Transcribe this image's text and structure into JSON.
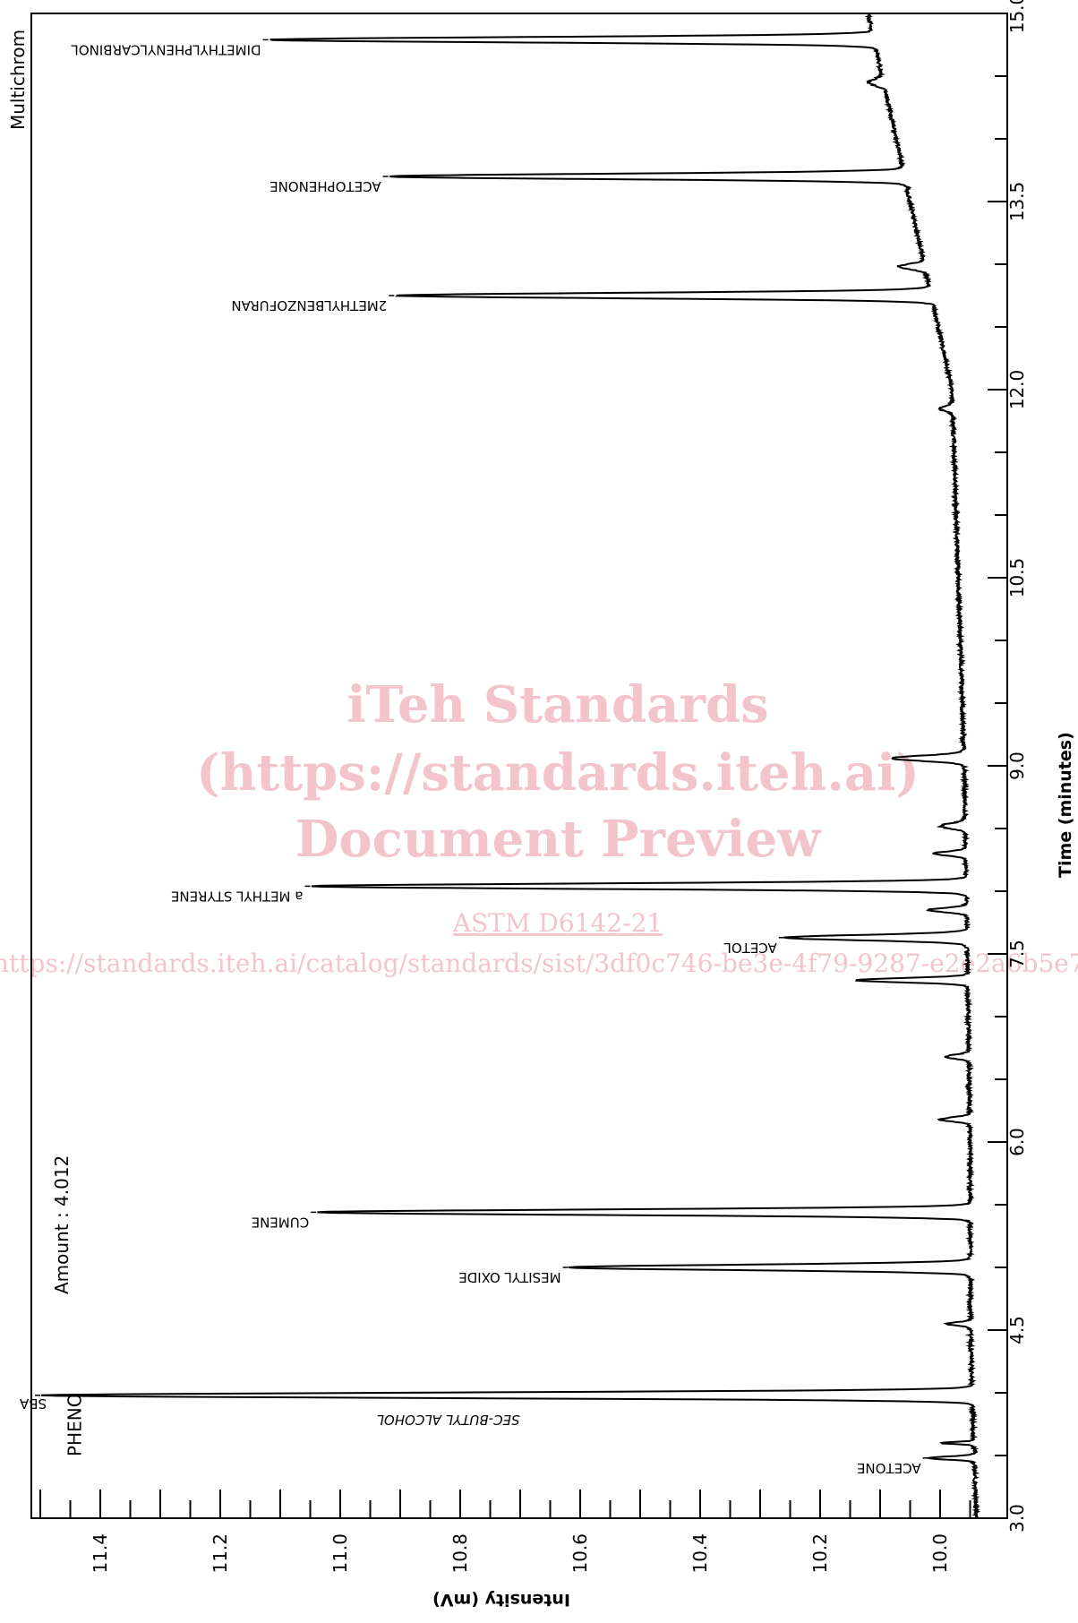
{
  "chart_data": {
    "type": "line",
    "orientation": "time axis vertical on right, intensity axis horizontal on bottom (rotated chromatogram)",
    "title": "Multichrom",
    "amount_text": "Amount : 4.012",
    "xlabel": "Time (minutes)",
    "ylabel": "Intensity (mV)",
    "xlim": [
      3.0,
      15.0
    ],
    "ylim": [
      9.92,
      11.5
    ],
    "time_ticks": [
      "3.0",
      "4.5",
      "6.0",
      "7.5",
      "9.0",
      "10.5",
      "12.0",
      "13.5",
      "15.0"
    ],
    "time_tick_values": [
      3.0,
      4.5,
      6.0,
      7.5,
      9.0,
      10.5,
      12.0,
      13.5,
      15.0
    ],
    "intensity_ticks": [
      "10.0",
      "10.2",
      "10.4",
      "10.6",
      "10.8",
      "11.0",
      "11.2",
      "11.4"
    ],
    "intensity_tick_values": [
      10.0,
      10.2,
      10.4,
      10.6,
      10.8,
      11.0,
      11.2,
      11.4
    ],
    "baseline": [
      {
        "t": 3.0,
        "i": 9.94
      },
      {
        "t": 4.5,
        "i": 9.95
      },
      {
        "t": 6.0,
        "i": 9.95
      },
      {
        "t": 9.0,
        "i": 9.96
      },
      {
        "t": 12.0,
        "i": 9.98
      },
      {
        "t": 13.5,
        "i": 10.05
      },
      {
        "t": 15.0,
        "i": 10.12
      }
    ],
    "series": [
      {
        "peaks": [
          {
            "label": "ACETONE",
            "t": 3.48,
            "height": 10.02,
            "width": 0.03
          },
          {
            "label": "",
            "t": 3.6,
            "height": 10.0,
            "width": 0.02
          },
          {
            "label": "SBA",
            "t": 3.98,
            "height": 11.5,
            "width": 0.05
          },
          {
            "label": "",
            "t": 4.55,
            "height": 9.99,
            "width": 0.03
          },
          {
            "label": "MESITYL OXIDE",
            "t": 5.0,
            "height": 10.62,
            "width": 0.05
          },
          {
            "label": "CUMENE",
            "t": 5.44,
            "height": 11.04,
            "width": 0.05
          },
          {
            "label": "",
            "t": 6.18,
            "height": 10.0,
            "width": 0.04
          },
          {
            "label": "",
            "t": 6.68,
            "height": 9.99,
            "width": 0.04
          },
          {
            "label": "",
            "t": 7.29,
            "height": 10.14,
            "width": 0.04
          },
          {
            "label": "ACETOL",
            "t": 7.63,
            "height": 10.26,
            "width": 0.05
          },
          {
            "label": "",
            "t": 7.85,
            "height": 10.02,
            "width": 0.04
          },
          {
            "label": "a METHYL STYRENE",
            "t": 8.04,
            "height": 11.05,
            "width": 0.05
          },
          {
            "label": "",
            "t": 8.3,
            "height": 10.01,
            "width": 0.04
          },
          {
            "label": "",
            "t": 8.52,
            "height": 10.0,
            "width": 0.05
          },
          {
            "label": "",
            "t": 9.06,
            "height": 10.08,
            "width": 0.05
          },
          {
            "label": "",
            "t": 11.85,
            "height": 10.0,
            "width": 0.05
          },
          {
            "label": "2METHYLBENZOFURAN",
            "t": 12.75,
            "height": 10.91,
            "width": 0.05
          },
          {
            "label": "",
            "t": 12.98,
            "height": 10.07,
            "width": 0.05
          },
          {
            "label": "ACETOPHENONE",
            "t": 13.7,
            "height": 10.92,
            "width": 0.05
          },
          {
            "label": "",
            "t": 14.45,
            "height": 10.12,
            "width": 0.06
          },
          {
            "label": "DIMETHYLPHENYLCARBINOL",
            "t": 14.79,
            "height": 11.12,
            "width": 0.05
          }
        ]
      }
    ],
    "annotations": [
      {
        "text": "SEC-BUTYL ALCOHOL",
        "t": 3.82,
        "i": 10.82
      },
      {
        "text": "PHENO",
        "t": 3.6,
        "i": 11.45
      }
    ],
    "grid": false,
    "legend": "none",
    "line_color": "#000000"
  },
  "watermark": {
    "line1": "iTeh Standards",
    "line2": "(https://standards.iteh.ai)",
    "line3": "Document Preview",
    "line4": "ASTM D6142-21",
    "line5": "https://standards.iteh.ai/catalog/standards/sist/3df0c746-be3e-4f79-9287-e2e2a6b5e7cb/astm-d6142-21",
    "color": "#f3c4cc"
  }
}
